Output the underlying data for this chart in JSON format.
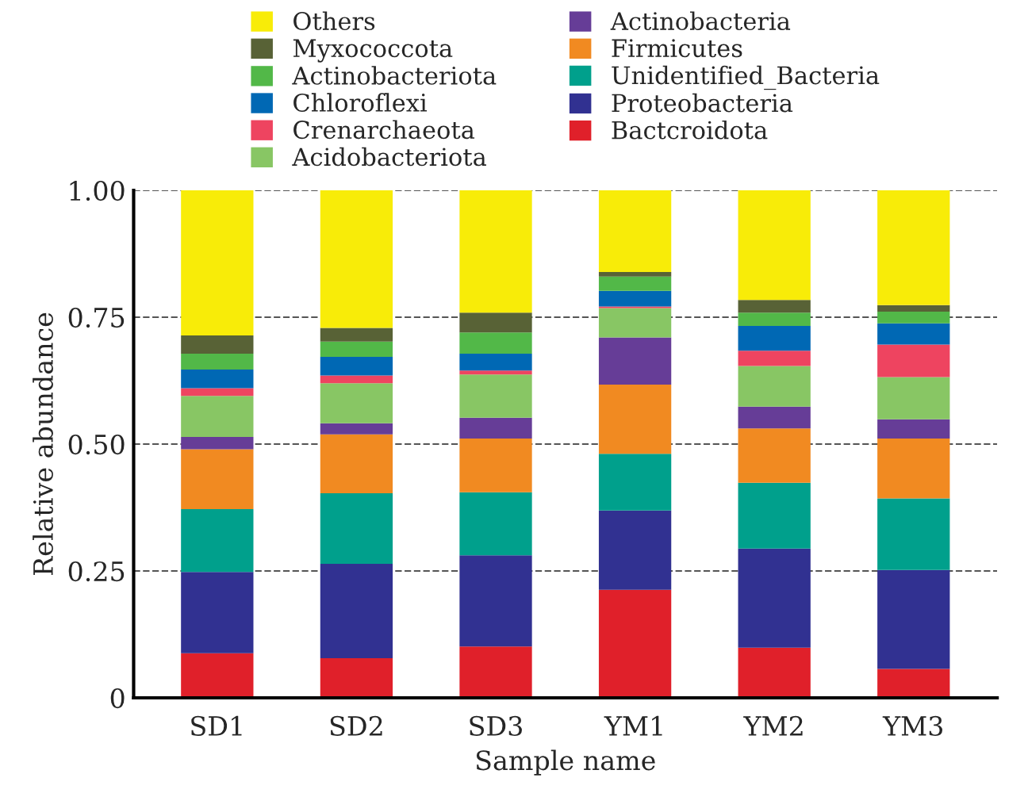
{
  "chart_data": {
    "type": "bar",
    "stacked": true,
    "xlabel": "Sample name",
    "ylabel": "Relative abundance",
    "categories": [
      "SD1",
      "SD2",
      "SD3",
      "YM1",
      "YM2",
      "YM3"
    ],
    "ylim": [
      0,
      1
    ],
    "yticks": [
      0,
      0.25,
      {
        "value": 0.5,
        "label": "0.50"
      },
      0.75,
      {
        "value": 1,
        "label": "1.00"
      }
    ],
    "grid": "y",
    "legend": "top",
    "series": [
      {
        "name": "Bactcroidota",
        "color": "#e0202a",
        "values": [
          0.088,
          0.078,
          0.101,
          0.213,
          0.099,
          0.057
        ]
      },
      {
        "name": "Proteobacteria",
        "color": "#313191",
        "values": [
          0.16,
          0.186,
          0.18,
          0.156,
          0.195,
          0.195
        ]
      },
      {
        "name": "Unidentified_Bacteria",
        "color": "#00a08c",
        "values": [
          0.124,
          0.139,
          0.124,
          0.112,
          0.13,
          0.141
        ]
      },
      {
        "name": "Firmicutes",
        "color": "#f18a21",
        "values": [
          0.118,
          0.116,
          0.106,
          0.136,
          0.107,
          0.118
        ]
      },
      {
        "name": "Actinobacteria",
        "color": "#663d97",
        "values": [
          0.024,
          0.022,
          0.041,
          0.093,
          0.043,
          0.038
        ]
      },
      {
        "name": "Acidobacteriota",
        "color": "#88c664",
        "values": [
          0.081,
          0.079,
          0.085,
          0.058,
          0.08,
          0.083
        ]
      },
      {
        "name": "Crenarchaeota",
        "color": "#ee4460",
        "values": [
          0.015,
          0.015,
          0.008,
          0.003,
          0.03,
          0.064
        ]
      },
      {
        "name": "Chloroflexi",
        "color": "#0068b4",
        "values": [
          0.037,
          0.037,
          0.033,
          0.031,
          0.049,
          0.042
        ]
      },
      {
        "name": "Actinobacteriota",
        "color": "#52b848",
        "values": [
          0.031,
          0.03,
          0.042,
          0.028,
          0.026,
          0.023
        ]
      },
      {
        "name": "Myxococcota",
        "color": "#586236",
        "values": [
          0.036,
          0.027,
          0.039,
          0.009,
          0.025,
          0.013
        ]
      },
      {
        "name": "Others",
        "color": "#f8ec08",
        "values": [
          0.286,
          0.271,
          0.241,
          0.161,
          0.216,
          0.226
        ]
      }
    ]
  }
}
